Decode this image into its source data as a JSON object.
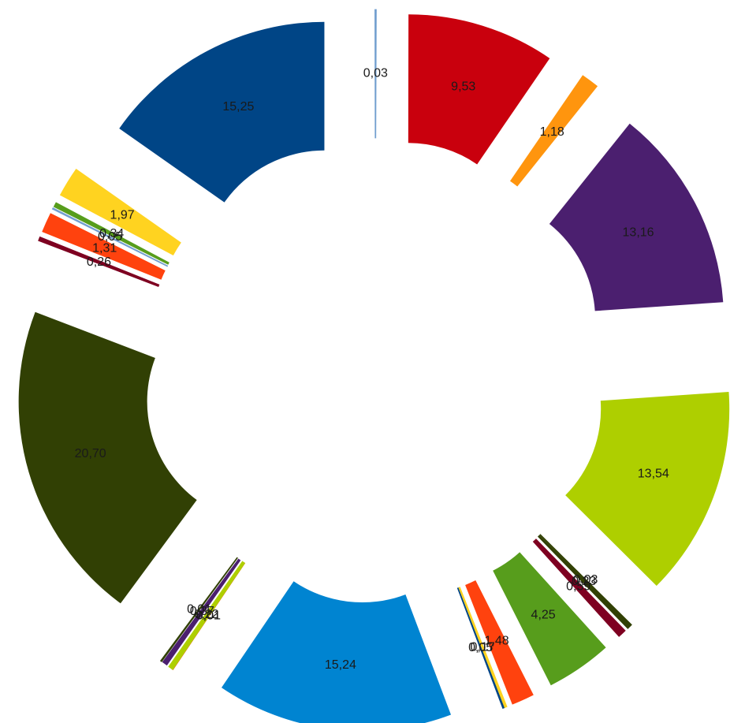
{
  "chart_data": {
    "type": "pie",
    "variant": "exploded doughnut",
    "title": "",
    "legend": "none",
    "slices": [
      {
        "label": "0,03",
        "value": 0.03,
        "color": "#729fcf"
      },
      {
        "label": "9,53",
        "value": 9.53,
        "color": "#c9000d"
      },
      {
        "label": "1,18",
        "value": 1.18,
        "color": "#ff950e"
      },
      {
        "label": "13,16",
        "value": 13.16,
        "color": "#4b1f6f"
      },
      {
        "label": "13,54",
        "value": 13.54,
        "color": "#aecf00"
      },
      {
        "label": "0,03",
        "value": 0.03,
        "color": "#314004"
      },
      {
        "label": "0,23",
        "value": 0.23,
        "color": "#314004"
      },
      {
        "label": "0,59",
        "value": 0.59,
        "color": "#7e0021"
      },
      {
        "label": "4,25",
        "value": 4.25,
        "color": "#579d1c"
      },
      {
        "label": "1,48",
        "value": 1.48,
        "color": "#ff420e"
      },
      {
        "label": "0,17",
        "value": 0.17,
        "color": "#ffd320"
      },
      {
        "label": "0,05",
        "value": 0.05,
        "color": "#004586"
      },
      {
        "label": "15,24",
        "value": 15.24,
        "color": "#0084d1"
      },
      {
        "label": "0,01",
        "value": 0.01,
        "color": "#ff420e"
      },
      {
        "label": "0,01",
        "value": 0.01,
        "color": "#aecf00"
      },
      {
        "label": "0,22",
        "value": 0.22,
        "color": "#aecf00"
      },
      {
        "label": "0,37",
        "value": 0.37,
        "color": "#4b1f6f"
      },
      {
        "label": "0,01",
        "value": 0.01,
        "color": "#314004"
      },
      {
        "label": "20,70",
        "value": 20.7,
        "color": "#314004"
      },
      {
        "label": "0,26",
        "value": 0.26,
        "color": "#7e0021"
      },
      {
        "label": "1,31",
        "value": 1.31,
        "color": "#ff420e"
      },
      {
        "label": "0,05",
        "value": 0.05,
        "color": "#729fcf"
      },
      {
        "label": "0,34",
        "value": 0.34,
        "color": "#579d1c"
      },
      {
        "label": "1,97",
        "value": 1.97,
        "color": "#ffd320"
      },
      {
        "label": "15,25",
        "value": 15.25,
        "color": "#004586"
      }
    ]
  }
}
